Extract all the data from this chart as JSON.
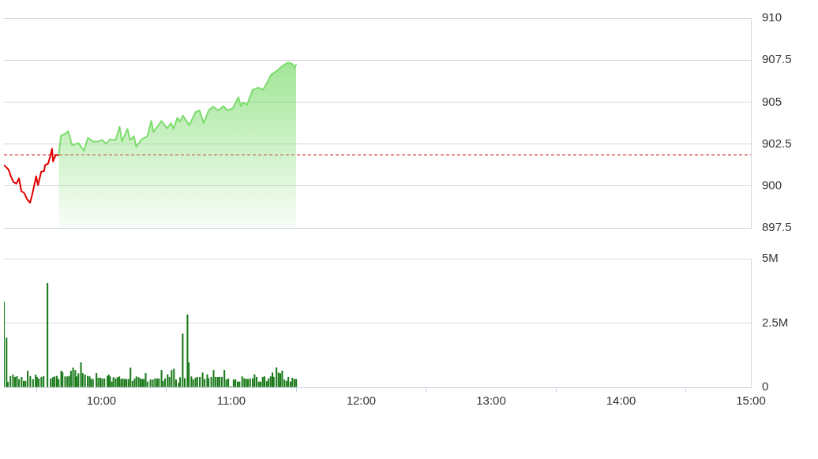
{
  "chart_data": [
    {
      "type": "line",
      "marker": "none",
      "grid": "y",
      "tick_labels": "y",
      "legend": false,
      "xlim": [
        9.25,
        15
      ],
      "ylim": [
        897.5,
        910
      ],
      "yticks": [
        897.5,
        900,
        902.5,
        905,
        907.5,
        910
      ],
      "ref_lines": [
        {
          "axis": "y",
          "value": 901.85,
          "color": "#d00000",
          "line_style": "dashed"
        }
      ],
      "series": [
        {
          "color": "#e00000",
          "x": [
            9.25,
            9.285,
            9.305,
            9.323,
            9.346,
            9.366,
            9.384,
            9.407,
            9.427,
            9.451,
            9.47,
            9.498,
            9.512,
            9.537,
            9.559,
            9.567,
            9.59,
            9.61,
            9.62,
            9.628,
            9.65,
            9.671
          ],
          "values": [
            901.25,
            900.98,
            900.54,
            900.23,
            900.14,
            900.45,
            899.7,
            899.57,
            899.22,
            899.0,
            899.57,
            900.58,
            900.05,
            900.85,
            900.89,
            901.24,
            901.33,
            901.86,
            902.21,
            901.46,
            901.86,
            901.81
          ]
        },
        {
          "type": "area",
          "color": "#7ddc6e",
          "x": [
            9.671,
            9.689,
            9.72,
            9.744,
            9.774,
            9.823,
            9.866,
            9.896,
            9.933,
            9.976,
            10.006,
            10.037,
            10.067,
            10.11,
            10.14,
            10.159,
            10.201,
            10.22,
            10.25,
            10.268,
            10.311,
            10.354,
            10.384,
            10.402,
            10.463,
            10.506,
            10.537,
            10.555,
            10.585,
            10.604,
            10.628,
            10.677,
            10.726,
            10.756,
            10.787,
            10.829,
            10.86,
            10.902,
            10.939,
            10.97,
            11.012,
            11.055,
            11.073,
            11.091,
            11.122,
            11.165,
            11.207,
            11.244,
            11.268,
            11.305,
            11.36,
            11.39,
            11.439,
            11.47,
            11.488,
            11.5
          ],
          "values": [
            901.81,
            903.0,
            903.09,
            903.27,
            902.43,
            902.56,
            902.1,
            902.87,
            902.65,
            902.65,
            902.74,
            902.52,
            902.78,
            902.74,
            903.53,
            902.65,
            903.4,
            902.74,
            902.96,
            902.34,
            902.78,
            902.96,
            903.88,
            903.22,
            903.88,
            903.44,
            903.75,
            903.4,
            904.06,
            903.84,
            904.19,
            903.62,
            904.41,
            904.5,
            903.75,
            904.54,
            904.72,
            904.5,
            904.76,
            904.5,
            904.63,
            905.29,
            904.76,
            904.98,
            904.85,
            905.73,
            905.86,
            905.73,
            906.04,
            906.61,
            906.92,
            907.14,
            907.36,
            907.27,
            907.05,
            907.27
          ]
        }
      ]
    },
    {
      "type": "bar",
      "grid": "y",
      "legend": false,
      "xlim": [
        9.25,
        15
      ],
      "xticks": [
        {
          "value": 10,
          "label": "10:00"
        },
        {
          "value": 11,
          "label": "11:00"
        },
        {
          "value": 12,
          "label": "12:00"
        },
        {
          "value": 13,
          "label": "13:00"
        },
        {
          "value": 14,
          "label": "14:00"
        },
        {
          "value": 15,
          "label": "15:00"
        }
      ],
      "ylim": [
        0,
        5
      ],
      "yticks": [
        0,
        {
          "value": 2.5,
          "label": "2.5M"
        },
        {
          "value": 5,
          "label": "5M"
        }
      ],
      "series": [
        {
          "color": "#1a7a1a",
          "x": [
            9.25,
            9.27,
            9.28,
            9.3,
            9.32,
            9.335,
            9.35,
            9.366,
            9.386,
            9.402,
            9.416,
            9.433,
            9.453,
            9.474,
            9.494,
            9.504,
            9.518,
            9.538,
            9.555,
            9.585,
            9.61,
            9.626,
            9.64,
            9.657,
            9.671,
            9.691,
            9.701,
            9.721,
            9.738,
            9.752,
            9.766,
            9.782,
            9.799,
            9.809,
            9.823,
            9.843,
            9.856,
            9.874,
            9.895,
            9.91,
            9.921,
            9.935,
            9.962,
            9.976,
            9.992,
            10.006,
            10.023,
            10.047,
            10.057,
            10.067,
            10.081,
            10.093,
            10.11,
            10.124,
            10.138,
            10.152,
            10.165,
            10.179,
            10.193,
            10.209,
            10.224,
            10.24,
            10.256,
            10.27,
            10.287,
            10.301,
            10.315,
            10.327,
            10.341,
            10.355,
            10.378,
            10.396,
            10.413,
            10.429,
            10.443,
            10.463,
            10.474,
            10.49,
            10.51,
            10.524,
            10.541,
            10.559,
            10.575,
            10.596,
            10.606,
            10.626,
            10.642,
            10.663,
            10.673,
            10.693,
            10.707,
            10.724,
            10.738,
            10.758,
            10.779,
            10.795,
            10.815,
            10.825,
            10.846,
            10.864,
            10.88,
            10.896,
            10.91,
            10.927,
            10.947,
            10.962,
            10.977,
            10.998,
            11.018,
            11.032,
            11.049,
            11.063,
            11.084,
            11.1,
            11.114,
            11.128,
            11.145,
            11.165,
            11.179,
            11.195,
            11.212,
            11.226,
            11.242,
            11.256,
            11.273,
            11.287,
            11.303,
            11.317,
            11.327,
            11.348,
            11.364,
            11.378,
            11.392,
            11.409,
            11.425,
            11.439,
            11.456,
            11.47,
            11.486,
            11.5
          ],
          "values": [
            3.32,
            1.92,
            0.2,
            0.42,
            0.48,
            0.39,
            0.42,
            0.3,
            0.39,
            0.24,
            0.24,
            0.63,
            0.42,
            0.3,
            0.48,
            0.39,
            0.33,
            0.39,
            0.42,
            4.04,
            0.33,
            0.38,
            0.41,
            0.43,
            0.31,
            0.63,
            0.58,
            0.41,
            0.41,
            0.43,
            0.63,
            0.75,
            0.66,
            0.41,
            0.53,
            0.96,
            0.54,
            0.48,
            0.43,
            0.41,
            0.31,
            0.31,
            0.54,
            0.36,
            0.36,
            0.33,
            0.33,
            0.43,
            0.48,
            0.41,
            0.21,
            0.38,
            0.33,
            0.38,
            0.41,
            0.31,
            0.33,
            0.31,
            0.31,
            0.31,
            0.75,
            0.24,
            0.33,
            0.41,
            0.38,
            0.33,
            0.31,
            0.31,
            0.54,
            0.21,
            0.29,
            0.29,
            0.33,
            0.33,
            0.33,
            0.66,
            0.24,
            0.33,
            0.49,
            0.39,
            0.66,
            0.71,
            0.29,
            0.16,
            0.38,
            2.08,
            0.34,
            2.82,
            0.96,
            0.41,
            0.29,
            0.36,
            0.39,
            0.39,
            0.56,
            0.31,
            0.49,
            0.34,
            0.39,
            0.66,
            0.39,
            0.39,
            0.39,
            0.39,
            0.66,
            0.29,
            0.33,
            0.03,
            0.29,
            0.29,
            0.21,
            0.21,
            0.41,
            0.34,
            0.31,
            0.31,
            0.33,
            0.33,
            0.49,
            0.39,
            0.21,
            0.21,
            0.39,
            0.41,
            0.23,
            0.33,
            0.41,
            0.56,
            0.39,
            0.76,
            0.56,
            0.53,
            0.63,
            0.29,
            0.24,
            0.39,
            0.21,
            0.36,
            0.31,
            0.31
          ]
        }
      ]
    }
  ]
}
